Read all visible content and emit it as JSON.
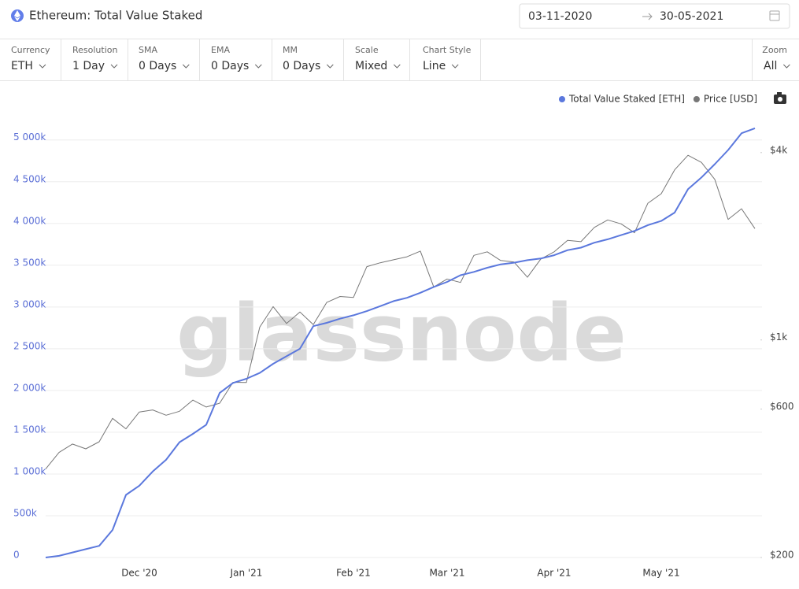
{
  "date_range": {
    "start": "03-11-2020",
    "end": "30-05-2021"
  },
  "toolbar": [
    {
      "label": "Currency",
      "value": "ETH"
    },
    {
      "label": "Resolution",
      "value": "1 Day"
    },
    {
      "label": "SMA",
      "value": "0 Days"
    },
    {
      "label": "EMA",
      "value": "0 Days"
    },
    {
      "label": "MM",
      "value": "0 Days"
    },
    {
      "label": "Scale",
      "value": "Mixed"
    },
    {
      "label": "Chart Style",
      "value": "Line"
    }
  ],
  "zoom": {
    "label": "Zoom",
    "value": "All"
  },
  "watermark": "glassnode",
  "chart_data": {
    "type": "line",
    "title": "Ethereum: Total Value Staked",
    "categories": [
      null,
      null,
      null,
      null,
      null,
      null,
      null,
      "Dec '20",
      null,
      null,
      null,
      null,
      null,
      null,
      null,
      "Jan '21",
      null,
      null,
      null,
      null,
      null,
      null,
      null,
      "Feb '21",
      null,
      null,
      null,
      null,
      null,
      null,
      "Mar '21",
      null,
      null,
      null,
      null,
      null,
      null,
      null,
      "Apr '21",
      null,
      null,
      null,
      null,
      null,
      null,
      null,
      "May '21",
      null,
      null,
      null,
      null,
      null,
      null,
      null
    ],
    "series": [
      {
        "name": "Total Value Staked [ETH]",
        "color": "#5b78dd",
        "values": [
          0,
          20000,
          60000,
          100000,
          140000,
          330000,
          750000,
          860000,
          1030000,
          1170000,
          1380000,
          1480000,
          1590000,
          1970000,
          2090000,
          2140000,
          2210000,
          2320000,
          2410000,
          2500000,
          2770000,
          2810000,
          2860000,
          2900000,
          2950000,
          3010000,
          3070000,
          3110000,
          3170000,
          3240000,
          3300000,
          3380000,
          3420000,
          3470000,
          3510000,
          3530000,
          3560000,
          3580000,
          3620000,
          3680000,
          3710000,
          3770000,
          3810000,
          3860000,
          3910000,
          3980000,
          4030000,
          4130000,
          4410000,
          4550000,
          4710000,
          4880000,
          5080000,
          5140000
        ]
      },
      {
        "name": "Price [USD]",
        "color": "#777777",
        "axis": "y2",
        "values": [
          385,
          435,
          463,
          447,
          471,
          560,
          518,
          587,
          596,
          573,
          590,
          641,
          609,
          626,
          731,
          730,
          1100,
          1280,
          1130,
          1230,
          1120,
          1320,
          1380,
          1370,
          1720,
          1770,
          1810,
          1850,
          1930,
          1480,
          1570,
          1530,
          1870,
          1920,
          1800,
          1780,
          1590,
          1820,
          1920,
          2090,
          2070,
          2300,
          2430,
          2360,
          2210,
          2750,
          2950,
          3520,
          3920,
          3720,
          3280,
          2440,
          2640,
          2280
        ]
      }
    ],
    "ylim": [
      0,
      5450000
    ],
    "yticks": [
      0,
      {
        "value": 500000,
        "label": "500k"
      },
      {
        "value": 1000000,
        "label": "1 000k"
      },
      {
        "value": 1500000,
        "label": "1 500k"
      },
      {
        "value": 2000000,
        "label": "2 000k"
      },
      {
        "value": 2500000,
        "label": "2 500k"
      },
      {
        "value": 3000000,
        "label": "3 000k"
      },
      {
        "value": 3500000,
        "label": "3 500k"
      },
      {
        "value": 4000000,
        "label": "4 000k"
      },
      {
        "value": 4500000,
        "label": "4 500k"
      },
      {
        "value": 5000000,
        "label": "5 000k"
      }
    ],
    "y2lim": [
      200,
      5800
    ],
    "y2ticks": [
      {
        "value": 200,
        "label": "$200"
      },
      {
        "value": 600,
        "label": "$600"
      },
      {
        "value": 1000,
        "label": "$1k"
      },
      {
        "value": 4000,
        "label": "$4k"
      }
    ],
    "y2_scale": "log",
    "grid": true,
    "legend": "top-right"
  }
}
